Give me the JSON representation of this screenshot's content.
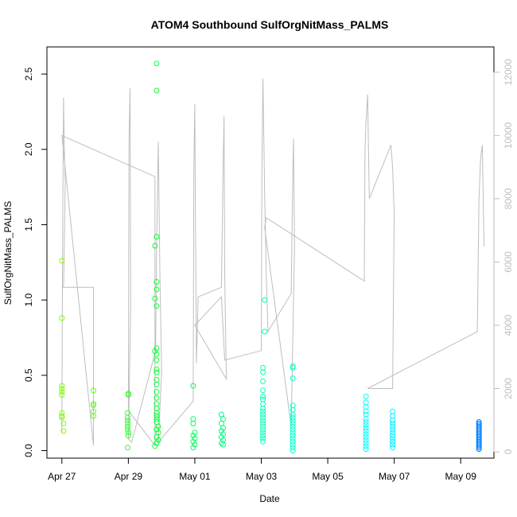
{
  "chart_data": {
    "type": "scatter",
    "title": "ATOM4 Southbound SulfOrgNitMass_PALMS",
    "xlabel": "Date",
    "ylabel": "SulfOrgNitMass_PALMS",
    "x_ticks": [
      "Apr 27",
      "Apr 29",
      "May 01",
      "May 03",
      "May 05",
      "May 07",
      "May 09"
    ],
    "x_tick_days": [
      0,
      2,
      4,
      6,
      8,
      10,
      12
    ],
    "xlim_days": [
      -0.45,
      13.0
    ],
    "ylim": [
      -0.05,
      2.68
    ],
    "y_ticks": [
      0.0,
      0.5,
      1.0,
      1.5,
      2.0,
      2.5
    ],
    "y_tick_labels": [
      "0.0",
      "0.5",
      "1.0",
      "1.5",
      "2.0",
      "2.5"
    ],
    "y2_ticks": [
      0,
      2000,
      4000,
      6000,
      8000,
      10000,
      12000
    ],
    "y2lim": [
      -200,
      12800
    ],
    "colors": {
      "altitude_line": "#bebebe",
      "gradient": [
        "#7fff00",
        "#00ff3f",
        "#00ffbf",
        "#00ffff",
        "#007fff"
      ]
    },
    "series": [
      {
        "points": [
          [
            0.0,
            1.26
          ],
          [
            0.0,
            0.88
          ],
          [
            0.0,
            0.43
          ],
          [
            0.0,
            0.41
          ],
          [
            0.0,
            0.39
          ],
          [
            0.0,
            0.37
          ],
          [
            0.0,
            0.25
          ],
          [
            0.0,
            0.23
          ],
          [
            0.0,
            0.22
          ],
          [
            0.05,
            0.18
          ],
          [
            0.05,
            0.13
          ],
          [
            0.95,
            0.4
          ],
          [
            0.95,
            0.31
          ],
          [
            0.95,
            0.3
          ],
          [
            0.95,
            0.26
          ],
          [
            0.95,
            0.23
          ],
          [
            2.0,
            0.38
          ],
          [
            2.0,
            0.37
          ],
          [
            1.98,
            0.25
          ],
          [
            1.98,
            0.22
          ],
          [
            1.98,
            0.2
          ],
          [
            1.98,
            0.18
          ],
          [
            1.98,
            0.16
          ],
          [
            1.98,
            0.14
          ],
          [
            2.0,
            0.12
          ],
          [
            2.0,
            0.1
          ],
          [
            1.98,
            0.02
          ],
          [
            2.85,
            2.57
          ],
          [
            2.85,
            2.39
          ],
          [
            2.85,
            1.42
          ],
          [
            2.8,
            1.36
          ],
          [
            2.85,
            1.12
          ],
          [
            2.85,
            1.07
          ],
          [
            2.8,
            1.01
          ],
          [
            2.85,
            0.96
          ],
          [
            2.85,
            0.68
          ],
          [
            2.8,
            0.66
          ],
          [
            2.85,
            0.64
          ],
          [
            2.85,
            0.6
          ],
          [
            2.85,
            0.54
          ],
          [
            2.85,
            0.52
          ],
          [
            2.85,
            0.47
          ],
          [
            2.85,
            0.44
          ],
          [
            2.85,
            0.39
          ],
          [
            2.85,
            0.35
          ],
          [
            2.85,
            0.31
          ],
          [
            2.85,
            0.28
          ],
          [
            2.85,
            0.25
          ],
          [
            2.85,
            0.23
          ],
          [
            2.85,
            0.21
          ],
          [
            2.85,
            0.19
          ],
          [
            2.9,
            0.16
          ],
          [
            2.85,
            0.14
          ],
          [
            2.9,
            0.12
          ],
          [
            2.85,
            0.09
          ],
          [
            2.9,
            0.07
          ],
          [
            2.85,
            0.05
          ],
          [
            2.8,
            0.03
          ],
          [
            3.95,
            0.43
          ],
          [
            3.95,
            0.21
          ],
          [
            3.95,
            0.18
          ],
          [
            4.0,
            0.12
          ],
          [
            3.95,
            0.1
          ],
          [
            4.0,
            0.08
          ],
          [
            3.95,
            0.06
          ],
          [
            4.0,
            0.04
          ],
          [
            3.95,
            0.02
          ],
          [
            4.8,
            0.24
          ],
          [
            4.85,
            0.21
          ],
          [
            4.8,
            0.18
          ],
          [
            4.85,
            0.15
          ],
          [
            4.8,
            0.13
          ],
          [
            4.85,
            0.11
          ],
          [
            4.8,
            0.09
          ],
          [
            4.85,
            0.07
          ],
          [
            4.8,
            0.05
          ],
          [
            4.85,
            0.04
          ],
          [
            6.1,
            1.0
          ],
          [
            6.1,
            0.79
          ],
          [
            6.05,
            0.55
          ],
          [
            6.05,
            0.52
          ],
          [
            6.05,
            0.46
          ],
          [
            6.05,
            0.4
          ],
          [
            6.05,
            0.36
          ],
          [
            6.05,
            0.34
          ],
          [
            6.05,
            0.31
          ],
          [
            6.05,
            0.28
          ],
          [
            6.05,
            0.26
          ],
          [
            6.05,
            0.24
          ],
          [
            6.05,
            0.22
          ],
          [
            6.05,
            0.2
          ],
          [
            6.05,
            0.18
          ],
          [
            6.05,
            0.16
          ],
          [
            6.05,
            0.14
          ],
          [
            6.05,
            0.12
          ],
          [
            6.05,
            0.1
          ],
          [
            6.05,
            0.08
          ],
          [
            6.05,
            0.06
          ],
          [
            6.95,
            0.56
          ],
          [
            6.95,
            0.55
          ],
          [
            6.95,
            0.48
          ],
          [
            6.95,
            0.3
          ],
          [
            6.95,
            0.27
          ],
          [
            6.95,
            0.24
          ],
          [
            6.95,
            0.22
          ],
          [
            6.95,
            0.2
          ],
          [
            6.95,
            0.18
          ],
          [
            6.95,
            0.16
          ],
          [
            6.95,
            0.14
          ],
          [
            6.95,
            0.12
          ],
          [
            6.95,
            0.1
          ],
          [
            6.95,
            0.08
          ],
          [
            6.95,
            0.06
          ],
          [
            6.95,
            0.04
          ],
          [
            6.95,
            0.02
          ],
          [
            6.95,
            0.0
          ],
          [
            9.15,
            0.36
          ],
          [
            9.15,
            0.32
          ],
          [
            9.15,
            0.29
          ],
          [
            9.15,
            0.26
          ],
          [
            9.15,
            0.24
          ],
          [
            9.15,
            0.21
          ],
          [
            9.15,
            0.19
          ],
          [
            9.15,
            0.17
          ],
          [
            9.15,
            0.15
          ],
          [
            9.15,
            0.13
          ],
          [
            9.15,
            0.11
          ],
          [
            9.15,
            0.09
          ],
          [
            9.15,
            0.07
          ],
          [
            9.15,
            0.05
          ],
          [
            9.15,
            0.03
          ],
          [
            9.15,
            0.01
          ],
          [
            9.95,
            0.26
          ],
          [
            9.95,
            0.23
          ],
          [
            9.95,
            0.2
          ],
          [
            9.95,
            0.18
          ],
          [
            9.95,
            0.16
          ],
          [
            9.95,
            0.14
          ],
          [
            9.95,
            0.12
          ],
          [
            9.95,
            0.1
          ],
          [
            9.95,
            0.08
          ],
          [
            9.95,
            0.06
          ],
          [
            9.95,
            0.04
          ],
          [
            9.95,
            0.02
          ],
          [
            12.55,
            0.19
          ],
          [
            12.55,
            0.18
          ],
          [
            12.55,
            0.17
          ],
          [
            12.55,
            0.16
          ],
          [
            12.55,
            0.15
          ],
          [
            12.55,
            0.14
          ],
          [
            12.55,
            0.13
          ],
          [
            12.55,
            0.12
          ],
          [
            12.55,
            0.11
          ],
          [
            12.55,
            0.1
          ],
          [
            12.55,
            0.09
          ],
          [
            12.55,
            0.08
          ],
          [
            12.55,
            0.07
          ],
          [
            12.55,
            0.06
          ],
          [
            12.55,
            0.05
          ],
          [
            12.55,
            0.04
          ],
          [
            12.55,
            0.03
          ],
          [
            12.55,
            0.02
          ],
          [
            12.55,
            0.01
          ]
        ]
      }
    ],
    "altitude_trace": [
      [
        0.0,
        600
      ],
      [
        0.02,
        6200
      ],
      [
        0.05,
        11200
      ],
      [
        0.07,
        9800
      ],
      [
        0.1,
        8500
      ],
      [
        0.05,
        5200
      ],
      [
        0.0,
        5200
      ],
      [
        0.95,
        5200
      ],
      [
        0.95,
        200
      ],
      [
        0.0,
        10000
      ],
      [
        2.8,
        8700
      ],
      [
        2.8,
        200
      ],
      [
        2.0,
        1300
      ],
      [
        2.02,
        9800
      ],
      [
        2.05,
        11500
      ],
      [
        2.07,
        4600
      ],
      [
        2.0,
        400
      ],
      [
        2.1,
        300
      ],
      [
        2.82,
        3200
      ],
      [
        2.85,
        6500
      ],
      [
        2.9,
        9800
      ],
      [
        2.95,
        5500
      ],
      [
        3.0,
        2500
      ],
      [
        2.9,
        300
      ],
      [
        3.95,
        1600
      ],
      [
        3.97,
        8900
      ],
      [
        4.0,
        11000
      ],
      [
        4.02,
        7200
      ],
      [
        4.05,
        2800
      ],
      [
        4.1,
        4900
      ],
      [
        4.8,
        5200
      ],
      [
        4.85,
        9000
      ],
      [
        4.88,
        10600
      ],
      [
        4.9,
        5600
      ],
      [
        4.95,
        2300
      ],
      [
        4.0,
        4000
      ],
      [
        4.8,
        4900
      ],
      [
        4.9,
        2900
      ],
      [
        6.0,
        3200
      ],
      [
        6.02,
        9100
      ],
      [
        6.05,
        11800
      ],
      [
        6.1,
        8200
      ],
      [
        6.15,
        5600
      ],
      [
        6.2,
        3800
      ],
      [
        6.9,
        5000
      ],
      [
        6.95,
        8900
      ],
      [
        6.97,
        9900
      ],
      [
        7.0,
        6500
      ],
      [
        6.9,
        800
      ],
      [
        6.1,
        7100
      ],
      [
        6.15,
        7400
      ],
      [
        9.1,
        5400
      ],
      [
        9.12,
        9500
      ],
      [
        9.15,
        10400
      ],
      [
        9.2,
        11300
      ],
      [
        9.25,
        8000
      ],
      [
        9.9,
        9700
      ],
      [
        9.95,
        9000
      ],
      [
        10.0,
        7500
      ],
      [
        9.95,
        2000
      ],
      [
        9.2,
        2000
      ],
      [
        12.5,
        3800
      ],
      [
        12.55,
        8000
      ],
      [
        12.6,
        9300
      ],
      [
        12.65,
        9700
      ],
      [
        12.7,
        6500
      ]
    ]
  }
}
